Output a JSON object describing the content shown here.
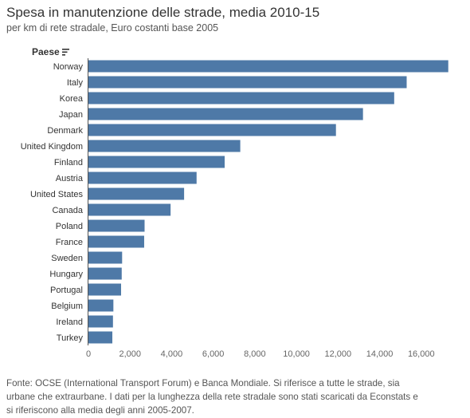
{
  "title": "Spesa in manutenzione delle strade, media 2010-15",
  "subtitle": "per km di rete stradale, Euro costanti base 2005",
  "sort_control": {
    "label": "Paese",
    "icon": "sort-icon"
  },
  "footer": {
    "lines": [
      "Fonte: OCSE (International Transport Forum) e Banca Mondiale. Si riferisce a tutte le strade, sia",
      "urbane che extraurbane. I dati per la lunghezza della rete stradale sono stati scaricati da Econstats e",
      "si riferiscono alla media degli anni 2005-2007."
    ]
  },
  "colors": {
    "bar": "#4e79a7",
    "text": "#333333",
    "axis": "#555555",
    "tick": "#666666"
  },
  "chart_data": {
    "type": "bar",
    "orientation": "horizontal",
    "categories": [
      "Norway",
      "Italy",
      "Korea",
      "Japan",
      "Denmark",
      "United Kingdom",
      "Finland",
      "Austria",
      "United States",
      "Canada",
      "Poland",
      "France",
      "Sweden",
      "Hungary",
      "Portugal",
      "Belgium",
      "Ireland",
      "Turkey"
    ],
    "values": [
      17300,
      15300,
      14700,
      13200,
      11900,
      7300,
      6550,
      5200,
      4600,
      3950,
      2700,
      2680,
      1620,
      1600,
      1570,
      1200,
      1180,
      1150
    ],
    "xlim": [
      0,
      18000
    ],
    "xticks": [
      0,
      2000,
      4000,
      6000,
      8000,
      10000,
      12000,
      14000,
      16000
    ],
    "xtick_labels": [
      "0",
      "2,000",
      "4,000",
      "6,000",
      "8,000",
      "10,000",
      "12,000",
      "14,000",
      "16,000"
    ],
    "ylabel": "Paese",
    "grid": false
  }
}
